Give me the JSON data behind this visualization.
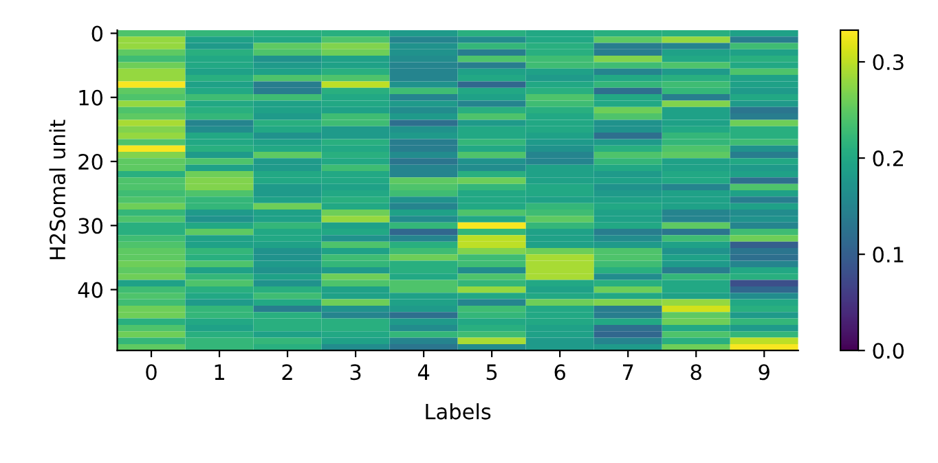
{
  "chart_data": {
    "type": "heatmap",
    "xlabel": "Labels",
    "ylabel": "H2Somal unit",
    "categories": [
      "0",
      "1",
      "2",
      "3",
      "4",
      "5",
      "6",
      "7",
      "8",
      "9"
    ],
    "y_categories": [
      "0",
      null,
      null,
      null,
      null,
      null,
      null,
      null,
      null,
      null,
      "10",
      null,
      null,
      null,
      null,
      null,
      null,
      null,
      null,
      null,
      "20",
      null,
      null,
      null,
      null,
      null,
      null,
      null,
      null,
      null,
      "30",
      null,
      null,
      null,
      null,
      null,
      null,
      null,
      null,
      null,
      "40",
      null,
      null,
      null,
      null,
      null,
      null,
      null,
      null,
      null
    ],
    "clim": [
      0,
      0.333
    ],
    "cticks": [
      {
        "value": 0,
        "label": "0.0"
      },
      {
        "value": 0.1,
        "label": "0.1"
      },
      {
        "value": 0.2,
        "label": "0.2"
      },
      {
        "value": 0.3,
        "label": "0.3"
      }
    ],
    "cells": [
      [
        0.24,
        0.22,
        0.21,
        0.21,
        0.18,
        0.21,
        0.2,
        0.21,
        0.21,
        0.19
      ],
      [
        0.28,
        0.19,
        0.2,
        0.24,
        0.15,
        0.16,
        0.2,
        0.25,
        0.28,
        0.14
      ],
      [
        0.28,
        0.18,
        0.25,
        0.27,
        0.17,
        0.22,
        0.21,
        0.14,
        0.15,
        0.23
      ],
      [
        0.25,
        0.21,
        0.24,
        0.26,
        0.17,
        0.14,
        0.21,
        0.14,
        0.19,
        0.19
      ],
      [
        0.23,
        0.2,
        0.17,
        0.19,
        0.16,
        0.24,
        0.23,
        0.27,
        0.2,
        0.21
      ],
      [
        0.26,
        0.2,
        0.18,
        0.19,
        0.15,
        0.14,
        0.23,
        0.23,
        0.24,
        0.2
      ],
      [
        0.28,
        0.19,
        0.19,
        0.21,
        0.15,
        0.19,
        0.19,
        0.15,
        0.18,
        0.24
      ],
      [
        0.28,
        0.21,
        0.24,
        0.24,
        0.15,
        0.2,
        0.18,
        0.2,
        0.21,
        0.19
      ],
      [
        0.33,
        0.19,
        0.14,
        0.3,
        0.17,
        0.11,
        0.2,
        0.22,
        0.23,
        0.19
      ],
      [
        0.25,
        0.2,
        0.14,
        0.21,
        0.23,
        0.2,
        0.21,
        0.12,
        0.22,
        0.18
      ],
      [
        0.24,
        0.23,
        0.23,
        0.2,
        0.15,
        0.19,
        0.24,
        0.2,
        0.14,
        0.2
      ],
      [
        0.28,
        0.2,
        0.19,
        0.2,
        0.18,
        0.15,
        0.23,
        0.2,
        0.27,
        0.18
      ],
      [
        0.24,
        0.21,
        0.19,
        0.19,
        0.16,
        0.21,
        0.21,
        0.26,
        0.19,
        0.13
      ],
      [
        0.25,
        0.22,
        0.18,
        0.23,
        0.18,
        0.24,
        0.2,
        0.24,
        0.19,
        0.14
      ],
      [
        0.29,
        0.15,
        0.21,
        0.23,
        0.12,
        0.18,
        0.2,
        0.17,
        0.19,
        0.26
      ],
      [
        0.27,
        0.16,
        0.2,
        0.18,
        0.17,
        0.2,
        0.2,
        0.17,
        0.2,
        0.21
      ],
      [
        0.28,
        0.2,
        0.17,
        0.18,
        0.18,
        0.2,
        0.19,
        0.12,
        0.22,
        0.21
      ],
      [
        0.24,
        0.2,
        0.19,
        0.21,
        0.14,
        0.22,
        0.18,
        0.18,
        0.22,
        0.23
      ],
      [
        0.33,
        0.21,
        0.2,
        0.2,
        0.14,
        0.2,
        0.17,
        0.21,
        0.24,
        0.17
      ],
      [
        0.27,
        0.18,
        0.25,
        0.21,
        0.16,
        0.24,
        0.15,
        0.24,
        0.25,
        0.14
      ],
      [
        0.25,
        0.24,
        0.18,
        0.2,
        0.13,
        0.17,
        0.15,
        0.22,
        0.19,
        0.2
      ],
      [
        0.25,
        0.19,
        0.18,
        0.23,
        0.15,
        0.16,
        0.19,
        0.2,
        0.19,
        0.18
      ],
      [
        0.21,
        0.26,
        0.2,
        0.2,
        0.15,
        0.21,
        0.19,
        0.18,
        0.2,
        0.19
      ],
      [
        0.24,
        0.27,
        0.2,
        0.2,
        0.25,
        0.26,
        0.19,
        0.19,
        0.2,
        0.12
      ],
      [
        0.24,
        0.27,
        0.18,
        0.19,
        0.24,
        0.22,
        0.2,
        0.17,
        0.15,
        0.24
      ],
      [
        0.23,
        0.24,
        0.18,
        0.2,
        0.23,
        0.2,
        0.2,
        0.18,
        0.19,
        0.19
      ],
      [
        0.24,
        0.22,
        0.19,
        0.21,
        0.17,
        0.2,
        0.19,
        0.19,
        0.19,
        0.14
      ],
      [
        0.26,
        0.22,
        0.26,
        0.2,
        0.15,
        0.2,
        0.22,
        0.2,
        0.19,
        0.19
      ],
      [
        0.22,
        0.18,
        0.19,
        0.26,
        0.19,
        0.24,
        0.23,
        0.19,
        0.15,
        0.16
      ],
      [
        0.24,
        0.17,
        0.19,
        0.28,
        0.16,
        0.2,
        0.25,
        0.19,
        0.15,
        0.17
      ],
      [
        0.21,
        0.2,
        0.22,
        0.19,
        0.22,
        0.33,
        0.22,
        0.2,
        0.25,
        0.15
      ],
      [
        0.21,
        0.25,
        0.2,
        0.2,
        0.11,
        0.22,
        0.19,
        0.14,
        0.13,
        0.23
      ],
      [
        0.23,
        0.19,
        0.2,
        0.17,
        0.15,
        0.3,
        0.19,
        0.16,
        0.23,
        0.26
      ],
      [
        0.24,
        0.19,
        0.19,
        0.24,
        0.21,
        0.3,
        0.19,
        0.18,
        0.19,
        0.1
      ],
      [
        0.25,
        0.22,
        0.17,
        0.19,
        0.23,
        0.27,
        0.26,
        0.24,
        0.17,
        0.13
      ],
      [
        0.25,
        0.21,
        0.17,
        0.23,
        0.26,
        0.23,
        0.29,
        0.24,
        0.19,
        0.12
      ],
      [
        0.26,
        0.24,
        0.18,
        0.22,
        0.21,
        0.23,
        0.29,
        0.23,
        0.18,
        0.15
      ],
      [
        0.25,
        0.19,
        0.17,
        0.18,
        0.21,
        0.16,
        0.29,
        0.21,
        0.14,
        0.2
      ],
      [
        0.26,
        0.22,
        0.19,
        0.26,
        0.2,
        0.24,
        0.29,
        0.16,
        0.22,
        0.21
      ],
      [
        0.19,
        0.24,
        0.17,
        0.24,
        0.24,
        0.22,
        0.2,
        0.21,
        0.2,
        0.08
      ],
      [
        0.23,
        0.21,
        0.21,
        0.19,
        0.24,
        0.28,
        0.19,
        0.26,
        0.2,
        0.11
      ],
      [
        0.24,
        0.2,
        0.23,
        0.19,
        0.19,
        0.2,
        0.2,
        0.2,
        0.19,
        0.16
      ],
      [
        0.23,
        0.18,
        0.2,
        0.26,
        0.19,
        0.15,
        0.26,
        0.27,
        0.28,
        0.2
      ],
      [
        0.26,
        0.22,
        0.14,
        0.17,
        0.18,
        0.23,
        0.2,
        0.14,
        0.31,
        0.21
      ],
      [
        0.26,
        0.22,
        0.21,
        0.15,
        0.12,
        0.22,
        0.2,
        0.14,
        0.25,
        0.18
      ],
      [
        0.21,
        0.2,
        0.21,
        0.21,
        0.18,
        0.2,
        0.2,
        0.2,
        0.26,
        0.22
      ],
      [
        0.24,
        0.19,
        0.21,
        0.21,
        0.16,
        0.21,
        0.19,
        0.12,
        0.2,
        0.18
      ],
      [
        0.26,
        0.21,
        0.19,
        0.2,
        0.22,
        0.23,
        0.19,
        0.11,
        0.24,
        0.22
      ],
      [
        0.22,
        0.22,
        0.22,
        0.19,
        0.15,
        0.29,
        0.18,
        0.15,
        0.21,
        0.3
      ],
      [
        0.25,
        0.22,
        0.21,
        0.16,
        0.13,
        0.16,
        0.18,
        0.18,
        0.26,
        0.33
      ]
    ]
  }
}
